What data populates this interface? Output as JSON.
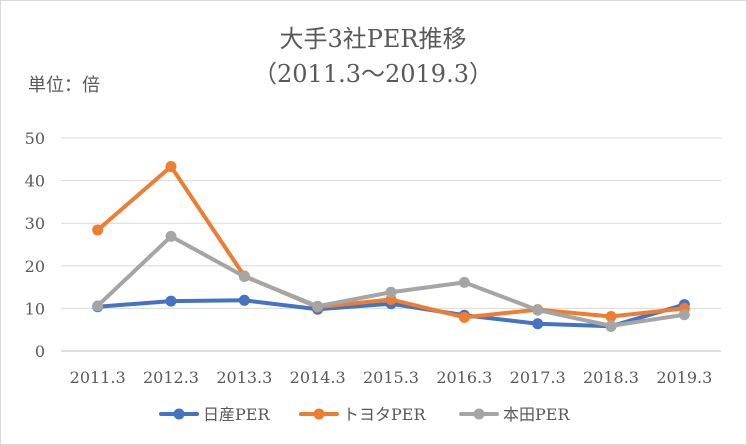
{
  "chart_data": {
    "type": "line",
    "title": "大手3社PER推移",
    "subtitle": "（2011.3～2019.3）",
    "unit_label": "単位：倍",
    "xlabel": "",
    "ylabel": "",
    "categories": [
      "2011.3",
      "2012.3",
      "2013.3",
      "2014.3",
      "2015.3",
      "2016.3",
      "2017.3",
      "2018.3",
      "2019.3"
    ],
    "ylim": [
      0,
      50
    ],
    "yticks": [
      0,
      10,
      20,
      30,
      40,
      50
    ],
    "grid": true,
    "legend": "bottom",
    "series": [
      {
        "name": "日産PER",
        "color": "#4472c4",
        "values": [
          10.4,
          11.7,
          11.9,
          9.8,
          11.1,
          8.4,
          6.4,
          5.8,
          10.9
        ]
      },
      {
        "name": "トヨタPER",
        "color": "#ed7d31",
        "values": [
          28.4,
          43.3,
          17.6,
          10.3,
          12.1,
          7.9,
          9.7,
          8.1,
          10.0
        ]
      },
      {
        "name": "本田PER",
        "color": "#a5a5a5",
        "values": [
          10.6,
          26.9,
          17.5,
          10.5,
          13.8,
          16.1,
          9.6,
          5.9,
          8.5
        ]
      }
    ]
  }
}
